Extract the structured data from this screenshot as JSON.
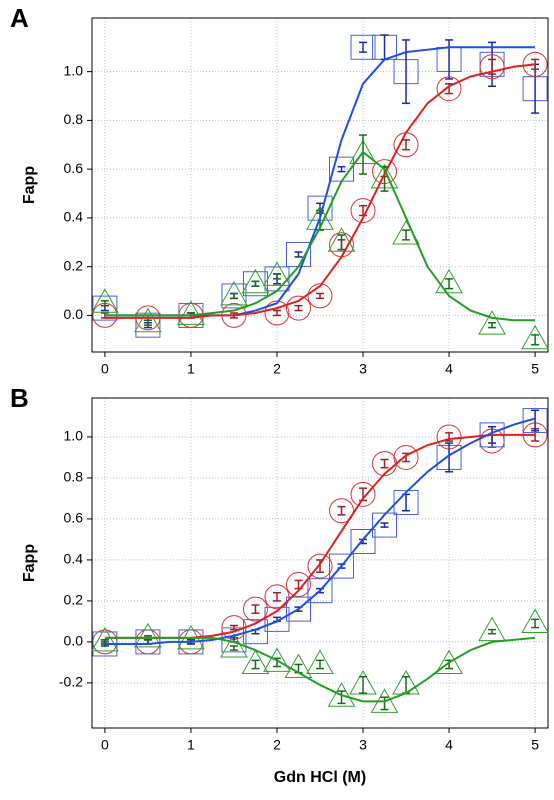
{
  "chart_data": [
    {
      "type": "scatter",
      "panel_label": "A",
      "y_label": "Fapp",
      "xlim": [
        -0.15,
        5.15
      ],
      "ylim": [
        -0.15,
        1.22
      ],
      "xticks": [
        0,
        1,
        2,
        3,
        4,
        5
      ],
      "yticks": [
        {
          "value": 0,
          "label": "0.0"
        },
        0.2,
        0.4,
        0.6,
        0.8,
        {
          "value": 1,
          "label": "1.0"
        }
      ],
      "grid": true,
      "series": [
        {
          "marker": "square",
          "color": "#4a5fe0",
          "error_color": "#1a2aa0",
          "x": [
            0,
            0.5,
            1,
            1.5,
            1.75,
            2,
            2.25,
            2.5,
            2.75,
            3,
            3.25,
            3.5,
            4,
            4.5,
            5
          ],
          "values": [
            0.03,
            -0.04,
            0.0,
            0.08,
            0.13,
            0.15,
            0.25,
            0.44,
            0.6,
            1.1,
            1.1,
            1.0,
            1.05,
            1.03,
            0.93
          ],
          "errors": [
            0.01,
            0.01,
            0.01,
            0.01,
            0.01,
            0.02,
            0.01,
            0.02,
            0.01,
            0.02,
            0.05,
            0.13,
            0.08,
            0.09,
            0.1
          ]
        },
        {
          "marker": "circle",
          "color": "#e03030",
          "error_color": "#a02020",
          "x": [
            0,
            0.5,
            1,
            1.5,
            2,
            2.25,
            2.5,
            2.75,
            3,
            3.25,
            3.5,
            4,
            4.5,
            5
          ],
          "values": [
            0.0,
            -0.01,
            0.0,
            0.0,
            0.01,
            0.03,
            0.08,
            0.29,
            0.43,
            0.59,
            0.7,
            0.93,
            1.02,
            1.03
          ],
          "errors": [
            0.01,
            0.01,
            0.01,
            0.01,
            0.01,
            0.01,
            0.01,
            0.02,
            0.02,
            0.02,
            0.02,
            0.02,
            0.03,
            0.02
          ]
        },
        {
          "marker": "triangle",
          "color": "#30a030",
          "error_color": "#1a6a1a",
          "x": [
            0,
            0.5,
            1,
            1.5,
            1.75,
            2,
            2.5,
            2.75,
            3,
            3.25,
            3.5,
            4,
            4.5,
            5
          ],
          "values": [
            0.05,
            -0.03,
            0.0,
            0.08,
            0.13,
            0.16,
            0.39,
            0.3,
            0.66,
            0.56,
            0.33,
            0.13,
            -0.04,
            -0.1
          ],
          "errors": [
            0.01,
            0.01,
            0.01,
            0.01,
            0.01,
            0.01,
            0.04,
            0.03,
            0.08,
            0.05,
            0.02,
            0.02,
            0.01,
            0.02
          ]
        },
        {
          "marker": "line",
          "color": "#2050e0",
          "x": [
            0,
            0.25,
            0.5,
            0.75,
            1,
            1.25,
            1.5,
            1.75,
            2,
            2.25,
            2.5,
            2.75,
            3,
            3.25,
            3.5,
            3.75,
            4,
            4.25,
            4.5,
            4.75,
            5
          ],
          "values": [
            0.0,
            0.0,
            0.0,
            0.0,
            0.0,
            0.0,
            0.0,
            0.02,
            0.05,
            0.17,
            0.4,
            0.72,
            0.95,
            1.05,
            1.08,
            1.09,
            1.1,
            1.1,
            1.1,
            1.1,
            1.1
          ]
        },
        {
          "marker": "line",
          "color": "#e02020",
          "x": [
            0,
            0.25,
            0.5,
            0.75,
            1,
            1.25,
            1.5,
            1.75,
            2,
            2.25,
            2.5,
            2.75,
            3,
            3.25,
            3.5,
            3.75,
            4,
            4.25,
            4.5,
            4.75,
            5
          ],
          "values": [
            -0.01,
            -0.01,
            -0.01,
            -0.01,
            -0.01,
            0.0,
            0.0,
            0.01,
            0.03,
            0.06,
            0.12,
            0.24,
            0.4,
            0.58,
            0.75,
            0.87,
            0.94,
            0.98,
            1.0,
            1.02,
            1.03
          ]
        },
        {
          "marker": "line",
          "color": "#20a020",
          "x": [
            0,
            0.25,
            0.5,
            0.75,
            1,
            1.25,
            1.5,
            1.75,
            2,
            2.25,
            2.5,
            2.75,
            3,
            3.25,
            3.5,
            3.75,
            4,
            4.25,
            4.5,
            4.75,
            5
          ],
          "values": [
            0.0,
            0.0,
            0.0,
            0.0,
            0.0,
            0.01,
            0.02,
            0.05,
            0.1,
            0.2,
            0.36,
            0.55,
            0.67,
            0.6,
            0.4,
            0.2,
            0.08,
            0.02,
            -0.01,
            -0.02,
            -0.02
          ]
        }
      ]
    },
    {
      "type": "scatter",
      "panel_label": "B",
      "y_label": "Fapp",
      "x_label": "Gdn HCl (M)",
      "xlim": [
        -0.15,
        5.15
      ],
      "ylim": [
        -0.42,
        1.19
      ],
      "xticks": [
        0,
        1,
        2,
        3,
        4,
        5
      ],
      "yticks": [
        -0.2,
        {
          "value": 0,
          "label": "0.0"
        },
        0.2,
        0.4,
        0.6,
        0.8,
        {
          "value": 1,
          "label": "1.0"
        }
      ],
      "grid": true,
      "series": [
        {
          "marker": "circle",
          "color": "#e03030",
          "error_color": "#a02020",
          "x": [
            0,
            0.5,
            1,
            1.5,
            1.75,
            2,
            2.25,
            2.5,
            2.75,
            3,
            3.25,
            3.5,
            4,
            4.5,
            5
          ],
          "values": [
            0.0,
            0.0,
            0.0,
            0.07,
            0.16,
            0.22,
            0.28,
            0.37,
            0.64,
            0.72,
            0.87,
            0.9,
            1.0,
            0.98,
            1.01
          ],
          "errors": [
            0.01,
            0.01,
            0.01,
            0.01,
            0.02,
            0.02,
            0.02,
            0.03,
            0.02,
            0.03,
            0.02,
            0.02,
            0.02,
            0.03,
            0.03
          ]
        },
        {
          "marker": "square",
          "color": "#4a5fe0",
          "error_color": "#1a2aa0",
          "x": [
            0,
            0.5,
            1,
            1.5,
            1.75,
            2,
            2.25,
            2.5,
            2.75,
            3,
            3.25,
            3.5,
            4,
            4.5,
            5
          ],
          "values": [
            -0.01,
            0.0,
            0.0,
            0.01,
            0.05,
            0.11,
            0.16,
            0.25,
            0.37,
            0.49,
            0.57,
            0.68,
            0.9,
            1.01,
            1.08
          ],
          "errors": [
            0.01,
            0.01,
            0.01,
            0.01,
            0.01,
            0.01,
            0.01,
            0.01,
            0.01,
            0.01,
            0.01,
            0.04,
            0.07,
            0.04,
            0.05
          ]
        },
        {
          "marker": "triangle",
          "color": "#30a030",
          "error_color": "#1a6a1a",
          "x": [
            0,
            0.5,
            1,
            1.5,
            1.75,
            2,
            2.25,
            2.5,
            2.75,
            3,
            3.25,
            3.5,
            4,
            4.5,
            5
          ],
          "values": [
            0.0,
            0.02,
            0.01,
            -0.03,
            -0.11,
            -0.1,
            -0.13,
            -0.11,
            -0.27,
            -0.21,
            -0.3,
            -0.21,
            -0.11,
            0.05,
            0.09
          ],
          "errors": [
            0.01,
            0.01,
            0.01,
            0.01,
            0.02,
            0.02,
            0.02,
            0.02,
            0.03,
            0.04,
            0.03,
            0.04,
            0.02,
            0.01,
            0.02
          ]
        },
        {
          "marker": "line",
          "color": "#e02020",
          "x": [
            0,
            0.25,
            0.5,
            0.75,
            1,
            1.25,
            1.5,
            1.75,
            2,
            2.25,
            2.5,
            2.75,
            3,
            3.25,
            3.5,
            3.75,
            4,
            4.25,
            4.5,
            4.75,
            5
          ],
          "values": [
            0.02,
            0.02,
            0.02,
            0.02,
            0.02,
            0.03,
            0.05,
            0.09,
            0.15,
            0.25,
            0.38,
            0.54,
            0.7,
            0.82,
            0.91,
            0.96,
            0.99,
            1.0,
            1.01,
            1.01,
            1.01
          ]
        },
        {
          "marker": "line",
          "color": "#2050e0",
          "x": [
            0,
            0.25,
            0.5,
            0.75,
            1,
            1.25,
            1.5,
            1.75,
            2,
            2.25,
            2.5,
            2.75,
            3,
            3.25,
            3.5,
            3.75,
            4,
            4.25,
            4.5,
            4.75,
            5
          ],
          "values": [
            -0.01,
            -0.01,
            -0.01,
            0.0,
            0.0,
            0.01,
            0.03,
            0.06,
            0.1,
            0.16,
            0.25,
            0.37,
            0.5,
            0.62,
            0.73,
            0.83,
            0.91,
            0.97,
            1.02,
            1.06,
            1.09
          ]
        },
        {
          "marker": "line",
          "color": "#20a020",
          "x": [
            0,
            0.25,
            0.5,
            0.75,
            1,
            1.25,
            1.5,
            1.75,
            2,
            2.25,
            2.5,
            2.75,
            3,
            3.25,
            3.5,
            3.75,
            4,
            4.25,
            4.5,
            4.75,
            5
          ],
          "values": [
            0.02,
            0.02,
            0.02,
            0.02,
            0.02,
            0.02,
            0.0,
            -0.04,
            -0.09,
            -0.15,
            -0.21,
            -0.26,
            -0.29,
            -0.29,
            -0.25,
            -0.18,
            -0.1,
            -0.04,
            0.0,
            0.01,
            0.02
          ]
        }
      ]
    }
  ]
}
